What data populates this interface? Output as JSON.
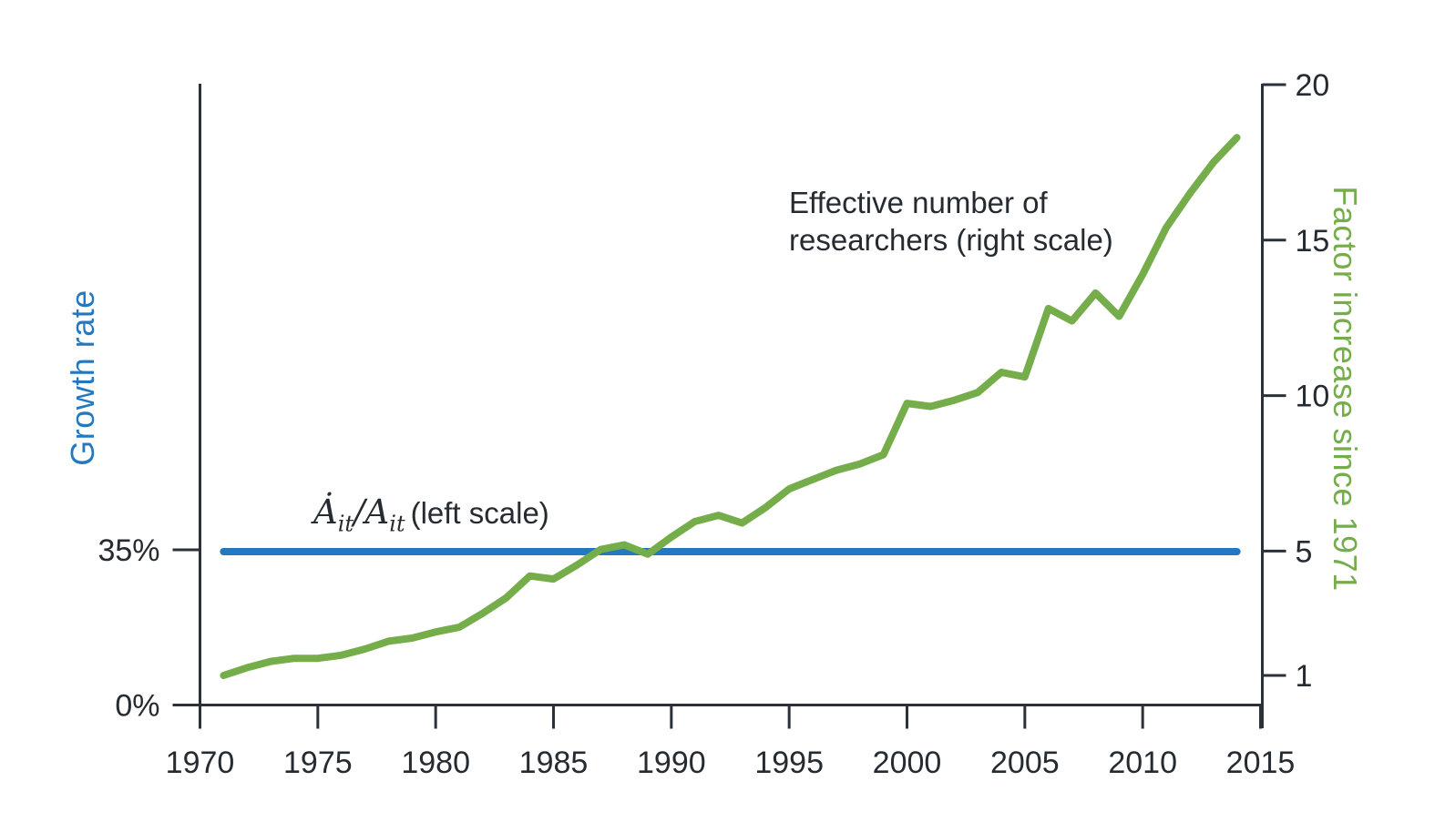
{
  "figure": {
    "left_axis_title": "Growth rate",
    "right_axis_title": "Factor increase since 1971",
    "annotation_researchers": {
      "line1": "Effective number of",
      "line2": "researchers (right scale)"
    },
    "annotation_growth": {
      "a_dot": "Ȧ",
      "sub_1": "it",
      "slash": "/",
      "a": "A",
      "sub_2": "it",
      "suffix": "(left scale)"
    }
  },
  "colors": {
    "growth_line": "#2478bf",
    "researchers_line": "#76ad4b",
    "axis": "#2a3138",
    "text": "#252b31"
  },
  "chart_data": {
    "type": "line",
    "title": "",
    "grid": false,
    "legend": "inline-annotations",
    "x_axis": {
      "label": "",
      "range": [
        1970,
        2015
      ],
      "ticks": [
        1970,
        1975,
        1980,
        1985,
        1990,
        1995,
        2000,
        2005,
        2010,
        2015
      ]
    },
    "left_y_axis": {
      "label": "Growth rate",
      "units": "percent per year",
      "ticks": [
        {
          "label": "35%",
          "value": 35
        },
        {
          "label": "0%",
          "value": 0
        }
      ]
    },
    "right_y_axis": {
      "label": "Factor increase since 1971",
      "range": [
        0,
        20
      ],
      "ticks": [
        20,
        15,
        10,
        5,
        1
      ]
    },
    "series": [
      {
        "name": "Ȧit/Ait (left scale)",
        "axis": "left",
        "style": "constant-line",
        "value_pct": 35,
        "x_range": [
          1971,
          2014
        ]
      },
      {
        "name": "Effective number of researchers (right scale)",
        "axis": "right",
        "style": "line",
        "x": [
          1971,
          1972,
          1973,
          1974,
          1975,
          1976,
          1977,
          1978,
          1979,
          1980,
          1981,
          1982,
          1983,
          1984,
          1985,
          1986,
          1987,
          1988,
          1989,
          1990,
          1991,
          1992,
          1993,
          1994,
          1995,
          1996,
          1997,
          1998,
          1999,
          2000,
          2001,
          2002,
          2003,
          2004,
          2005,
          2006,
          2007,
          2008,
          2009,
          2010,
          2011,
          2012,
          2013,
          2014
        ],
        "values": [
          1.0,
          1.25,
          1.45,
          1.55,
          1.55,
          1.65,
          1.85,
          2.1,
          2.2,
          2.4,
          2.55,
          3.0,
          3.5,
          4.2,
          4.1,
          4.55,
          5.05,
          5.2,
          4.9,
          5.45,
          5.95,
          6.15,
          5.9,
          6.4,
          7.0,
          7.3,
          7.6,
          7.8,
          8.1,
          9.75,
          9.65,
          9.85,
          10.1,
          10.75,
          10.6,
          12.8,
          12.4,
          13.3,
          12.55,
          13.9,
          15.4,
          16.5,
          17.5,
          18.3
        ]
      }
    ]
  }
}
